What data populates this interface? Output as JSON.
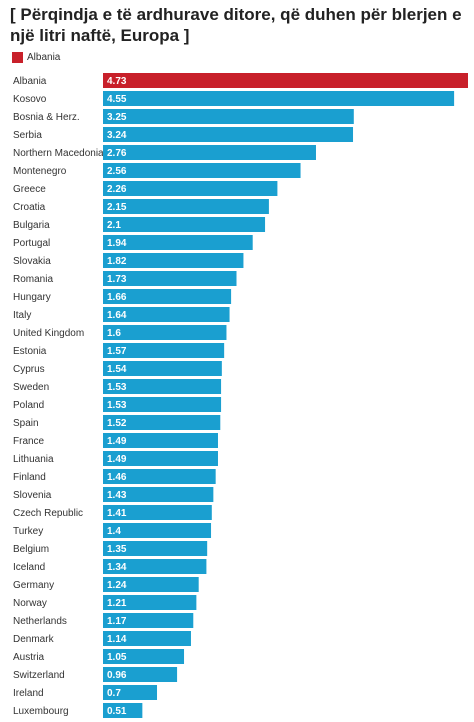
{
  "chart_data": {
    "type": "bar",
    "orientation": "horizontal",
    "title": "[ Përqindja e të ardhurave ditore, që duhen për blerjen e një litri naftë, Europa ]",
    "legend": [
      {
        "name": "Albania",
        "color": "#c8202a"
      }
    ],
    "highlight_color": "#c8202a",
    "bar_color": "#1a9fd0",
    "xlim": [
      0,
      4.73
    ],
    "categories": [
      "Albania",
      "Kosovo",
      "Bosnia & Herz.",
      "Serbia",
      "Northern Macedonia",
      "Montenegro",
      "Greece",
      "Croatia",
      "Bulgaria",
      "Portugal",
      "Slovakia",
      "Romania",
      "Hungary",
      "Italy",
      "United Kingdom",
      "Estonia",
      "Cyprus",
      "Sweden",
      "Poland",
      "Spain",
      "France",
      "Lithuania",
      "Finland",
      "Slovenia",
      "Czech Republic",
      "Turkey",
      "Belgium",
      "Iceland",
      "Germany",
      "Norway",
      "Netherlands",
      "Denmark",
      "Austria",
      "Switzerland",
      "Ireland",
      "Luxembourg"
    ],
    "values": [
      4.73,
      4.55,
      3.25,
      3.24,
      2.76,
      2.56,
      2.26,
      2.15,
      2.1,
      1.94,
      1.82,
      1.73,
      1.66,
      1.64,
      1.6,
      1.57,
      1.54,
      1.53,
      1.53,
      1.52,
      1.49,
      1.49,
      1.46,
      1.43,
      1.41,
      1.4,
      1.35,
      1.34,
      1.24,
      1.21,
      1.17,
      1.14,
      1.05,
      0.96,
      0.7,
      0.51
    ],
    "highlight": [
      "Albania"
    ]
  }
}
